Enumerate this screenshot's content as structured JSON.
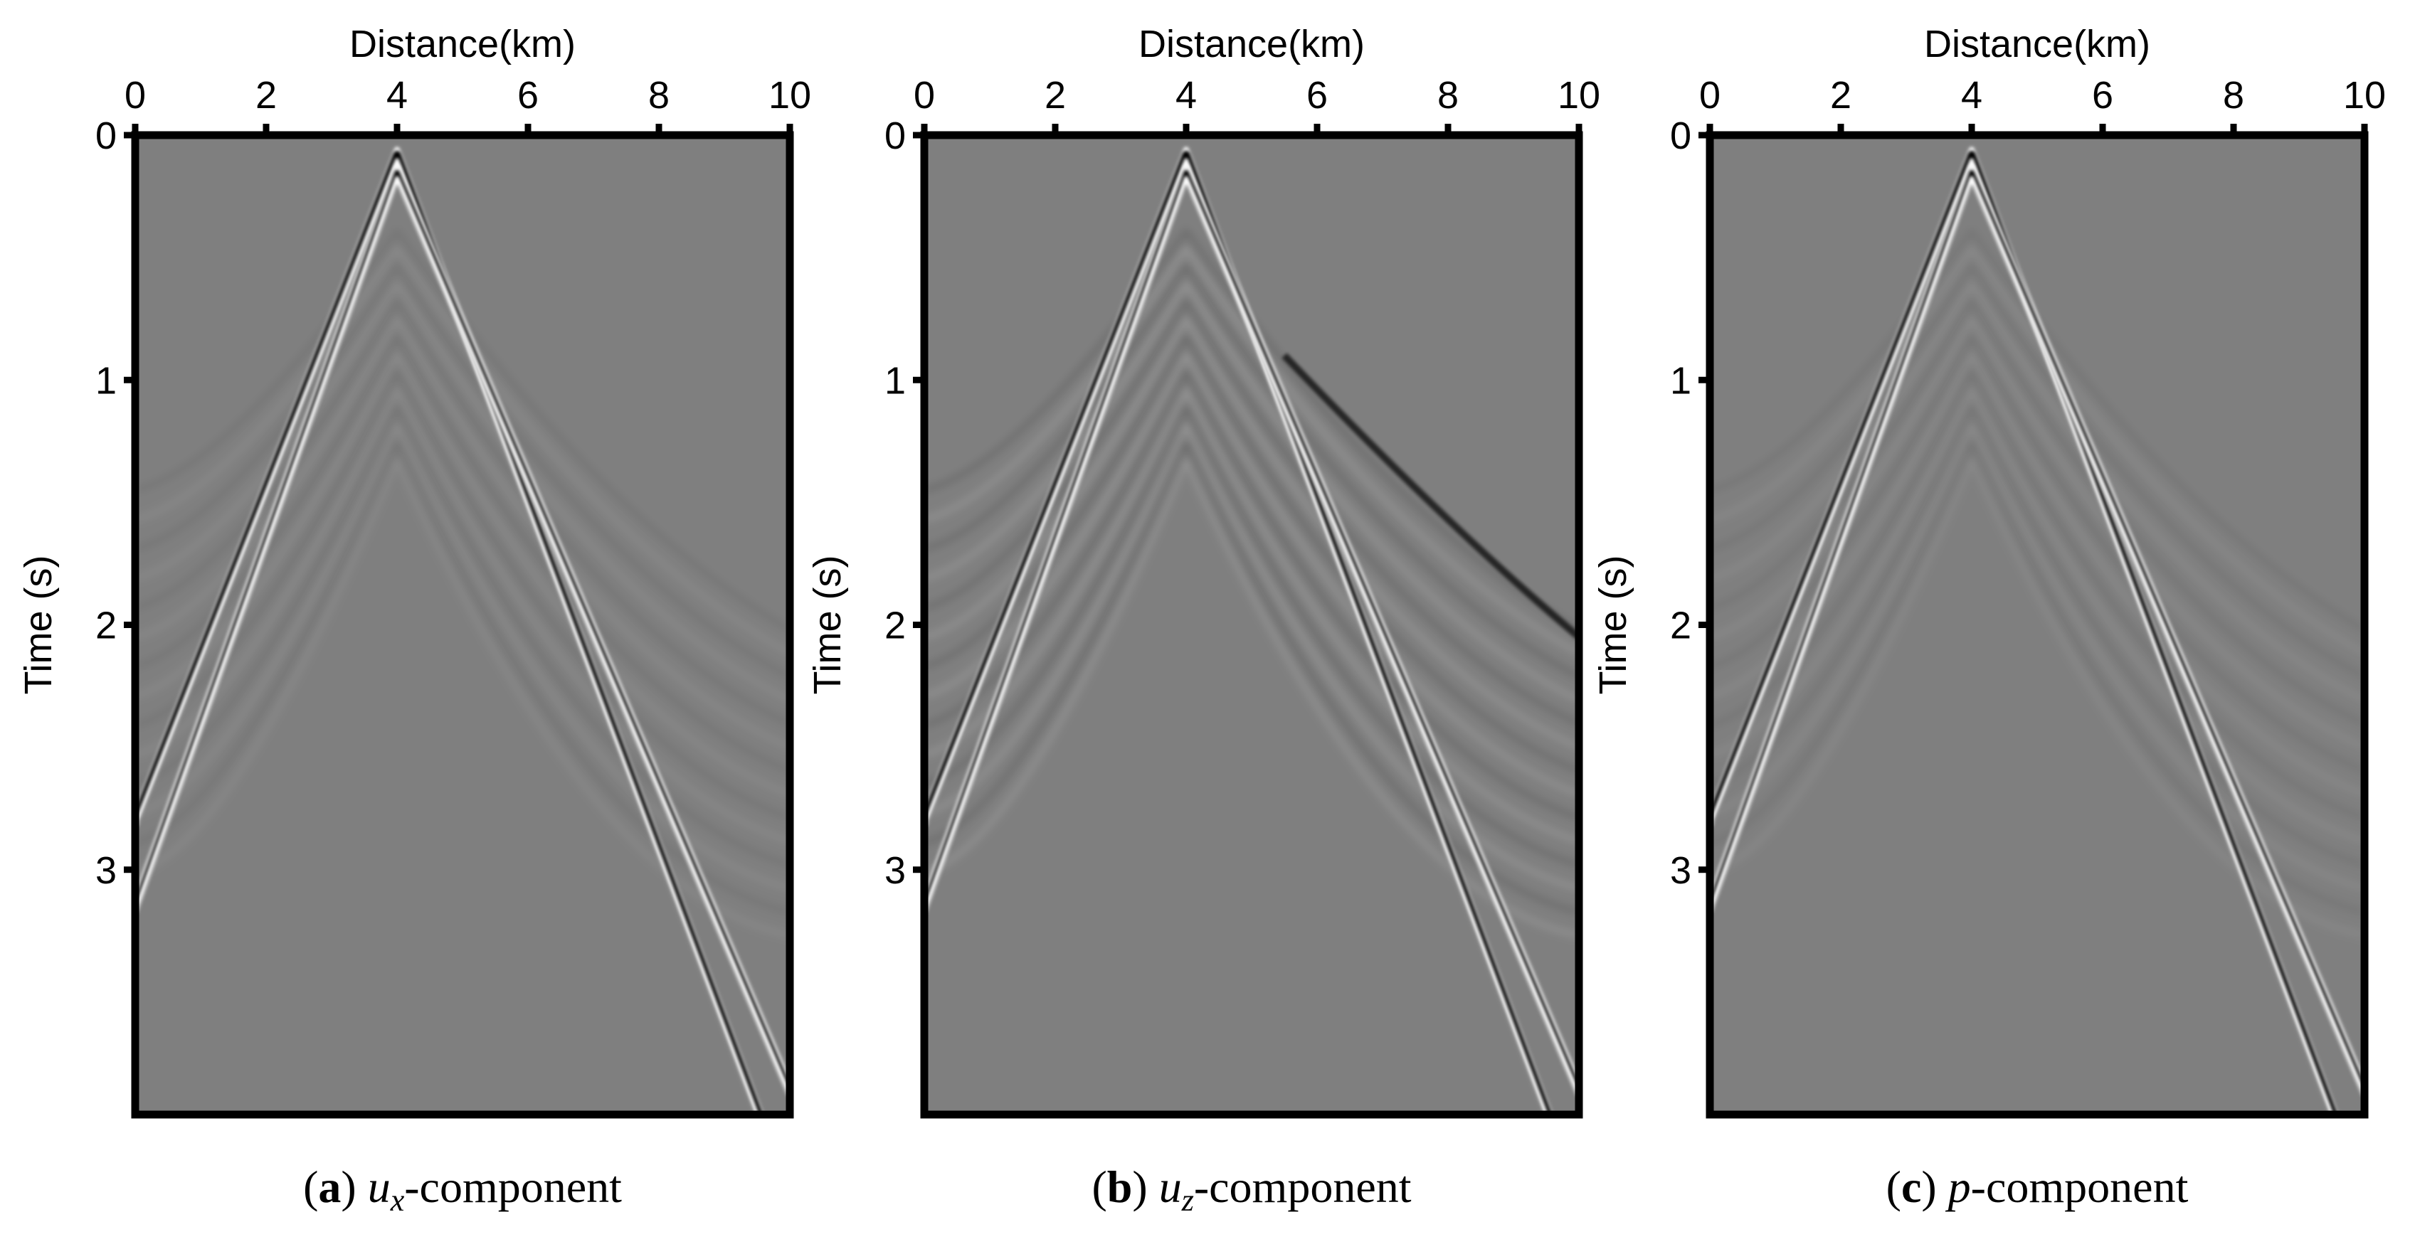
{
  "chart_data": [
    {
      "type": "seismic",
      "xlabel": "Distance(km)",
      "ylabel": "Time (s)",
      "xlim": [
        0,
        10
      ],
      "xticks": [
        0,
        2,
        4,
        6,
        8,
        10
      ],
      "ylim": [
        0,
        4
      ],
      "yticks": [
        0,
        1,
        2,
        3
      ],
      "caption": [
        {
          "text": "(",
          "style": "normal"
        },
        {
          "text": "a",
          "style": "bold"
        },
        {
          "text": ") ",
          "style": "normal"
        },
        {
          "text": "u",
          "style": "italic"
        },
        {
          "text": "x",
          "style": "italic-sub"
        },
        {
          "text": "-component",
          "style": "normal"
        }
      ]
    },
    {
      "type": "seismic",
      "xlabel": "Distance(km)",
      "ylabel": "Time (s)",
      "xlim": [
        0,
        10
      ],
      "xticks": [
        0,
        2,
        4,
        6,
        8,
        10
      ],
      "ylim": [
        0,
        4
      ],
      "yticks": [
        0,
        1,
        2,
        3
      ],
      "caption": [
        {
          "text": "(",
          "style": "normal"
        },
        {
          "text": "b",
          "style": "bold"
        },
        {
          "text": ") ",
          "style": "normal"
        },
        {
          "text": "u",
          "style": "italic"
        },
        {
          "text": "z",
          "style": "italic-sub"
        },
        {
          "text": "-component",
          "style": "normal"
        }
      ]
    },
    {
      "type": "seismic",
      "xlabel": "Distance(km)",
      "ylabel": "Time (s)",
      "xlim": [
        0,
        10
      ],
      "xticks": [
        0,
        2,
        4,
        6,
        8,
        10
      ],
      "ylim": [
        0,
        4
      ],
      "yticks": [
        0,
        1,
        2,
        3
      ],
      "caption": [
        {
          "text": "(",
          "style": "normal"
        },
        {
          "text": "c",
          "style": "bold"
        },
        {
          "text": ") ",
          "style": "normal"
        },
        {
          "text": "p",
          "style": "italic"
        },
        {
          "text": "-component",
          "style": "normal"
        }
      ]
    }
  ]
}
